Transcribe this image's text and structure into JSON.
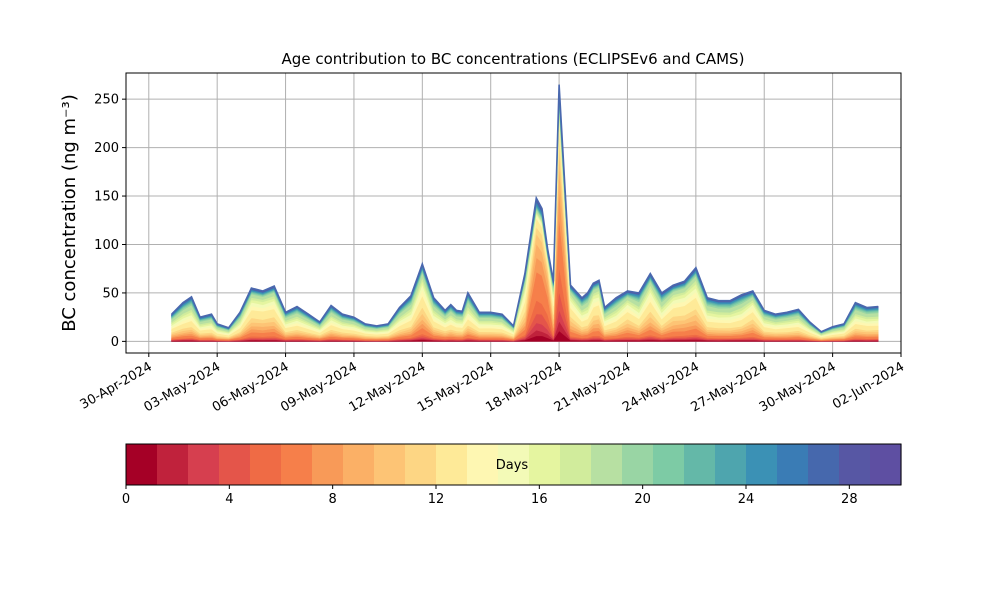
{
  "chart_data": [
    {
      "type": "area",
      "stacked": true,
      "title": "Age contribution to BC concentrations (ECLIPSEv6 and CAMS)",
      "ylabel": "BC concentration (ng m⁻³)",
      "xlabel": "",
      "ylim": [
        -12,
        277
      ],
      "xlim": [
        "2024-04-29",
        "2024-06-02"
      ],
      "grid": true,
      "y_ticks": [
        0,
        50,
        100,
        150,
        200,
        250
      ],
      "x_ticks": [
        "30-Apr-2024",
        "03-May-2024",
        "06-May-2024",
        "09-May-2024",
        "12-May-2024",
        "15-May-2024",
        "18-May-2024",
        "21-May-2024",
        "24-May-2024",
        "27-May-2024",
        "30-May-2024",
        "02-Jun-2024"
      ],
      "series_count": 30,
      "series_labels": "age bins 0–30 days",
      "total_time_series": {
        "x": [
          "2024-05-01",
          "2024-05-01T12",
          "2024-05-01T21",
          "2024-05-02T06",
          "2024-05-02T18",
          "2024-05-03",
          "2024-05-03T12",
          "2024-05-04",
          "2024-05-04T12",
          "2024-05-05",
          "2024-05-05T12",
          "2024-05-06",
          "2024-05-06T12",
          "2024-05-07",
          "2024-05-07T12",
          "2024-05-08",
          "2024-05-08T12",
          "2024-05-09",
          "2024-05-09T12",
          "2024-05-10",
          "2024-05-10T12",
          "2024-05-11",
          "2024-05-11T12",
          "2024-05-12",
          "2024-05-12T12",
          "2024-05-13",
          "2024-05-13T06",
          "2024-05-13T12",
          "2024-05-13T18",
          "2024-05-14",
          "2024-05-14T12",
          "2024-05-15",
          "2024-05-15T12",
          "2024-05-16",
          "2024-05-16T12",
          "2024-05-17",
          "2024-05-17T06",
          "2024-05-17T12",
          "2024-05-17T18",
          "2024-05-18",
          "2024-05-18T12",
          "2024-05-19",
          "2024-05-19T06",
          "2024-05-19T12",
          "2024-05-19T18",
          "2024-05-20",
          "2024-05-20T12",
          "2024-05-21",
          "2024-05-21T12",
          "2024-05-22",
          "2024-05-22T12",
          "2024-05-23",
          "2024-05-23T12",
          "2024-05-24",
          "2024-05-24T12",
          "2024-05-25",
          "2024-05-25T12",
          "2024-05-26",
          "2024-05-26T12",
          "2024-05-27",
          "2024-05-27T12",
          "2024-05-28",
          "2024-05-28T12",
          "2024-05-29",
          "2024-05-29T12",
          "2024-05-30",
          "2024-05-30T12",
          "2024-05-31",
          "2024-05-31T12",
          "2024-06-01"
        ],
        "y": [
          28,
          40,
          46,
          25,
          28,
          18,
          14,
          30,
          55,
          52,
          57,
          30,
          36,
          28,
          20,
          37,
          28,
          25,
          18,
          16,
          18,
          35,
          47,
          80,
          45,
          32,
          38,
          32,
          31,
          50,
          30,
          30,
          28,
          16,
          70,
          148,
          137,
          95,
          62,
          265,
          58,
          45,
          50,
          60,
          63,
          35,
          45,
          52,
          50,
          70,
          50,
          58,
          62,
          76,
          45,
          42,
          42,
          48,
          52,
          32,
          28,
          30,
          33,
          20,
          10,
          15,
          18,
          40,
          35,
          36
        ]
      }
    },
    {
      "type": "colorbar",
      "label": "Days",
      "ticks": [
        0,
        4,
        8,
        12,
        16,
        20,
        24,
        28
      ],
      "range": [
        0,
        30
      ],
      "colormap": "Spectral",
      "colors": [
        "#a50026",
        "#c0223c",
        "#d63f4f",
        "#e4554a",
        "#ef6b45",
        "#f67f4a",
        "#f89a58",
        "#fbb066",
        "#fdc475",
        "#fdd684",
        "#feea98",
        "#fef7b2",
        "#f3fab7",
        "#e5f5a0",
        "#d1ec9c",
        "#b7e0a2",
        "#99d5a4",
        "#7dcba5",
        "#64b8a8",
        "#4ea5ae",
        "#3b91b5",
        "#3a7cb5",
        "#4668ad",
        "#5757a4",
        "#5e4fa2"
      ]
    }
  ]
}
